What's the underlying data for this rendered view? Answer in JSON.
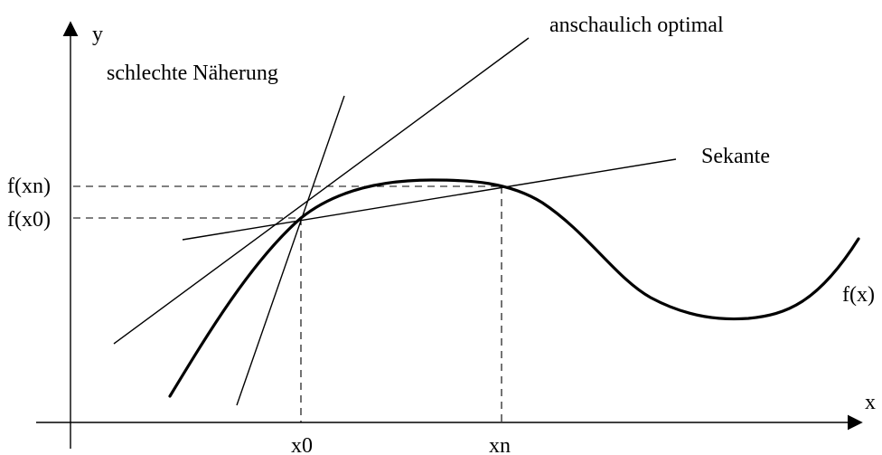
{
  "diagram": {
    "axis_labels": {
      "x": "x",
      "y": "y"
    },
    "point_labels": {
      "x0": "x0",
      "xn": "xn"
    },
    "value_labels": {
      "f_x0": "f(x0)",
      "f_xn": "f(xn)"
    },
    "curve_label": "f(x)",
    "line_labels": {
      "poor": "schlechte Näherung",
      "optimal": "anschaulich optimal",
      "secant": "Sekante"
    },
    "colors": {
      "line": "#000000",
      "background": "#ffffff"
    }
  }
}
